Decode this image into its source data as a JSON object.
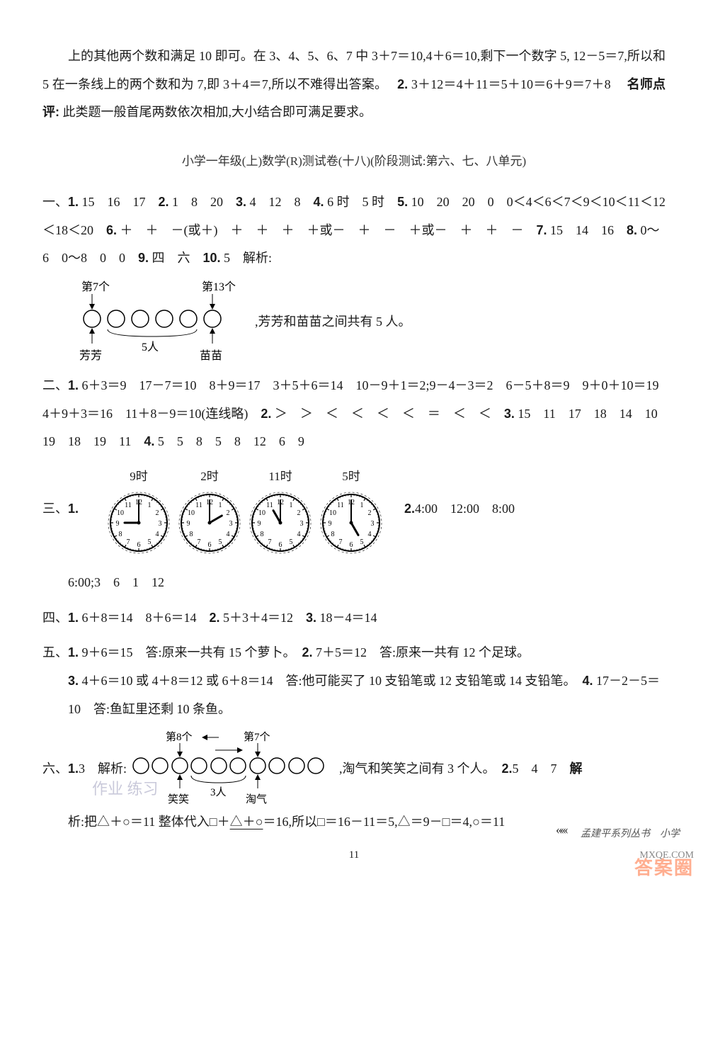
{
  "intro": {
    "p1_a": "上的其他两个数和满足 10 即可。在 3、4、5、6、7 中 3＋7＝10,4＋6＝10,剩下一个数字 5, 12－5＝7,所以和 5 在一条线上的两个数和为 7,即 3＋4＝7,所以不难得出答案。　",
    "p1_b": "2.",
    "p1_c": " 3＋12＝4＋11＝5＋10＝6＋9＝7＋8　",
    "p1_d": "名师点评:",
    "p1_e": "此类题一般首尾两数依次相加,大小结合即可满足要求。"
  },
  "title": "小学一年级(上)数学(R)测试卷(十八)(阶段测试:第六、七、八单元)",
  "sec1": {
    "label": "一、",
    "line1": "1. 15　16　17　2. 1　8　20　3. 4　12　8　4. 6 时　5 时　5. 10　20　20　0　0＜4＜6＜7＜9＜10＜11＜12＜18＜20　6. ＋　＋　－(或＋)　＋　＋　＋　＋或－　＋　－　＋或－　＋　＋　－　7. 15　14　16　8. 0～6　0～8　0　0　9. 四　六　10. 5　解析:",
    "diagram": {
      "label7": "第7个",
      "label13": "第13个",
      "fangfang": "芳芳",
      "miaomiao": "苗苗",
      "five": "5人",
      "text_after": ",芳芳和苗苗之间共有 5 人。"
    }
  },
  "sec2": {
    "label": "二、",
    "line": "1. 6＋3＝9　17－7＝10　8＋9＝17　3＋5＋6＝14　10－9＋1＝2;9－4－3＝2　6－5＋8＝9　9＋0＋10＝19　4＋9＋3＝16　11＋8－9＝10(连线略)　2. ＞　＞　＜　＜　＜　＜　＝　＜　＜　3. 15　11　17　18　14　10　19　18　19　11　4. 5　5　8　5　8　12　6　9"
  },
  "sec3": {
    "label": "三、",
    "q1": "1.",
    "clocks": [
      {
        "label": "9时",
        "hour": 9,
        "minute": 0
      },
      {
        "label": "2时",
        "hour": 2,
        "minute": 0
      },
      {
        "label": "11时",
        "hour": 11,
        "minute": 0
      },
      {
        "label": "5时",
        "hour": 5,
        "minute": 0
      }
    ],
    "q2": "2. 4:00　12:00　8:00",
    "line2": "6:00;3　6　1　12"
  },
  "sec4": {
    "label": "四、",
    "line": "1. 6＋8＝14　8＋6＝14　2. 5＋3＋4＝12　3. 18－4＝14"
  },
  "sec5": {
    "label": "五、",
    "line1": "1. 9＋6＝15　答:原来一共有 15 个萝卜。　2. 7＋5＝12　答:原来一共有 12 个足球。",
    "line2": "3. 4＋6＝10 或 4＋8＝12 或 6＋8＝14　答:他可能买了 10 支铅笔或 12 支铅笔或 14 支铅笔。　4. 17－2－5＝10　答:鱼缸里还剩 10 条鱼。"
  },
  "sec6": {
    "label": "六、",
    "q1a": "1. 3　解析:",
    "diagram": {
      "label8": "第8个",
      "label7": "第7个",
      "xiaoxiao": "笑笑",
      "taoqi": "淘气",
      "three": "3人"
    },
    "q1b": ",淘气和笑笑之间有 3 个人。　",
    "q2": "2. 5　4　7　",
    "q2label": "解",
    "line2a": "析:把△＋○＝11 整体代入□＋",
    "line2b": "△＋○",
    "line2c": "＝16,所以□＝16－11＝5,△＝9－□＝4,○＝11"
  },
  "pgnum": "11",
  "footer_series": "孟建平系列丛书　小学",
  "faint_wm": "作业 练习",
  "wm_main": "答案圈",
  "wm_url": "MXQE.COM",
  "colors": {
    "text": "#1a1a1a",
    "bg": "#ffffff",
    "circle_stroke": "#000000",
    "watermark": "rgba(255,120,70,0.6)"
  }
}
